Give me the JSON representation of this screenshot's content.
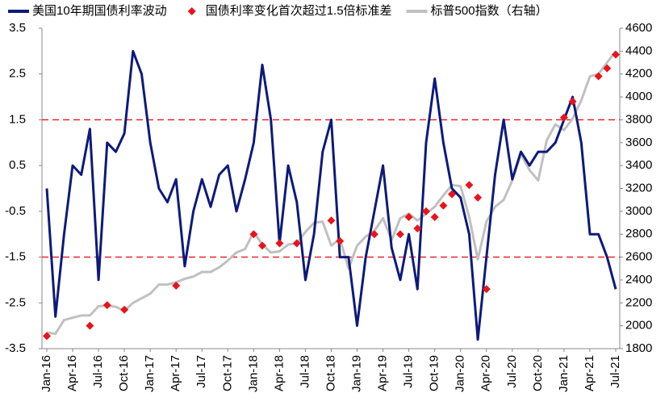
{
  "chart_data": {
    "type": "line",
    "categories": [
      "Jan-16",
      null,
      null,
      "Apr-16",
      null,
      null,
      "Jul-16",
      null,
      null,
      "Oct-16",
      null,
      null,
      "Jan-17",
      null,
      null,
      "Apr-17",
      null,
      null,
      "Jul-17",
      null,
      null,
      "Oct-17",
      null,
      null,
      "Jan-18",
      null,
      null,
      "Apr-18",
      null,
      null,
      "Jul-18",
      null,
      null,
      "Oct-18",
      null,
      null,
      "Jan-19",
      null,
      null,
      "Apr-19",
      null,
      null,
      "Jul-19",
      null,
      null,
      "Oct-19",
      null,
      null,
      "Jan-20",
      null,
      null,
      "Apr-20",
      null,
      null,
      "Jul-20",
      null,
      null,
      "Oct-20",
      null,
      null,
      "Jan-21",
      null,
      null,
      "Apr-21",
      null,
      null,
      "Jul-21"
    ],
    "series": [
      {
        "name": "美国10年期国债利率波动",
        "color": "#0d1a7a",
        "kind": "line",
        "values": [
          0.0,
          -2.8,
          -1.0,
          0.5,
          0.3,
          1.3,
          -2.0,
          1.0,
          0.8,
          1.2,
          3.0,
          2.5,
          1.0,
          0.0,
          -0.3,
          0.2,
          -1.7,
          -0.5,
          0.2,
          -0.4,
          0.3,
          0.5,
          -0.5,
          0.2,
          1.0,
          2.7,
          1.5,
          -1.2,
          0.5,
          -0.3,
          -2.0,
          -1.0,
          0.8,
          1.5,
          -1.5,
          -1.5,
          -3.0,
          -1.5,
          -0.5,
          0.5,
          -1.3,
          -2.0,
          -1.0,
          -2.2,
          1.0,
          2.4,
          1.0,
          0.0,
          -0.2,
          -1.0,
          -3.3,
          -1.5,
          0.3,
          1.5,
          0.2,
          0.8,
          0.5,
          0.8,
          0.8,
          1.0,
          1.5,
          2.0,
          1.0,
          -1.0,
          -1.0,
          -1.5,
          -2.2
        ]
      },
      {
        "name": "国债利率变化首次超过1.5倍标准差",
        "color": "#e8141c",
        "kind": "diamond",
        "axis": "y2",
        "values": [
          1910,
          null,
          null,
          null,
          null,
          2000,
          null,
          2180,
          null,
          2140,
          null,
          null,
          null,
          null,
          null,
          2350,
          null,
          null,
          null,
          null,
          null,
          null,
          null,
          null,
          2800,
          2700,
          null,
          2720,
          null,
          2720,
          null,
          null,
          null,
          2920,
          2740,
          null,
          null,
          null,
          2800,
          null,
          null,
          2800,
          2950,
          2850,
          3000,
          2950,
          3050,
          3150,
          null,
          3230,
          3120,
          2320,
          null,
          null,
          null,
          null,
          null,
          null,
          null,
          null,
          3820,
          3960,
          null,
          null,
          4180,
          4250,
          4370
        ]
      },
      {
        "name": "标普500指数（右轴）",
        "color": "#c0c0c0",
        "kind": "line",
        "axis": "y2",
        "values": [
          1940,
          1930,
          2050,
          2070,
          2090,
          2090,
          2170,
          2175,
          2165,
          2130,
          2200,
          2240,
          2280,
          2360,
          2360,
          2380,
          2410,
          2430,
          2470,
          2470,
          2510,
          2570,
          2640,
          2670,
          2820,
          2710,
          2640,
          2650,
          2710,
          2720,
          2820,
          2900,
          2910,
          2700,
          2760,
          2500,
          2700,
          2780,
          2830,
          2940,
          2750,
          2940,
          2980,
          2920,
          2980,
          3040,
          3140,
          3230,
          3220,
          2950,
          2580,
          2910,
          3040,
          3100,
          3270,
          3500,
          3360,
          3270,
          3620,
          3760,
          3710,
          3810,
          3970,
          4180,
          4200,
          4300,
          4400
        ]
      }
    ],
    "ylim": [
      -3.5,
      3.5
    ],
    "yticks": [
      -3.5,
      -2.5,
      -1.5,
      -0.5,
      0.5,
      1.5,
      2.5,
      3.5
    ],
    "y2lim": [
      1800,
      4600
    ],
    "y2ticks": [
      1800,
      2000,
      2200,
      2400,
      2600,
      2800,
      3000,
      3200,
      3400,
      3600,
      3800,
      4000,
      4200,
      4400,
      4600
    ],
    "reference_lines": {
      "color": "#e8141c",
      "values": [
        1.5,
        -1.5
      ]
    },
    "legend": "top"
  }
}
